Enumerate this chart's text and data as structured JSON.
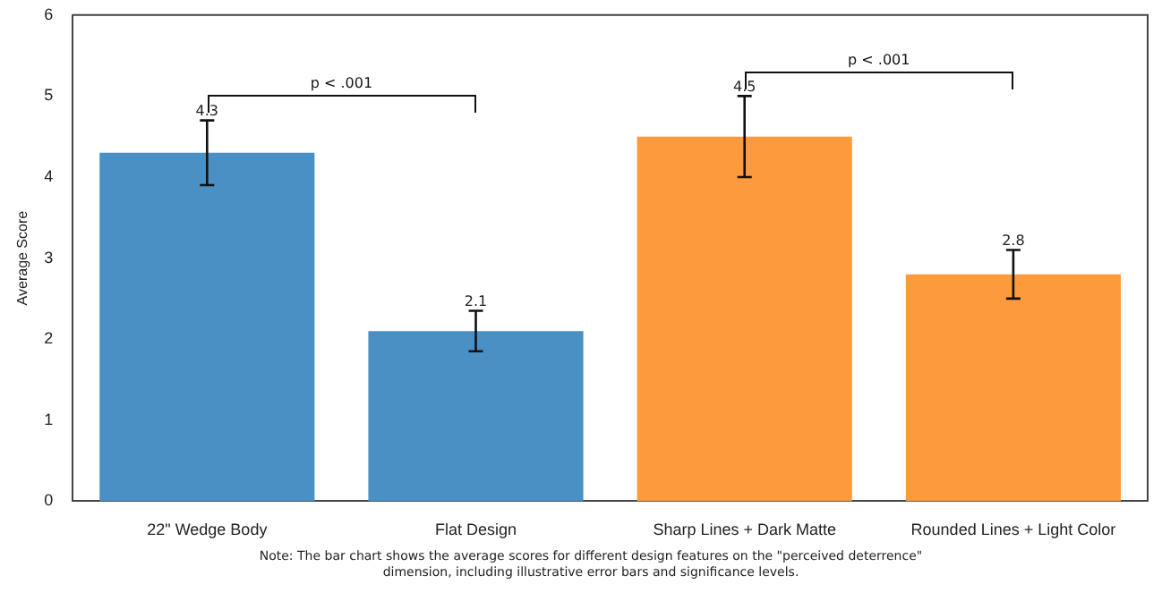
{
  "chart_data": {
    "type": "bar",
    "ylabel": "Average Score",
    "categories": [
      "22\" Wedge Body",
      "Flat Design",
      "Sharp Lines + Dark Matte",
      "Rounded Lines + Light Color"
    ],
    "values": [
      4.3,
      2.1,
      4.5,
      2.8
    ],
    "colors": [
      "#4a90c4",
      "#4a90c4",
      "#fd9a3e",
      "#fd9a3e"
    ],
    "errors": [
      0.4,
      0.25,
      0.5,
      0.3
    ],
    "data_labels": true,
    "ylim": [
      0,
      6
    ],
    "yticks": [
      0,
      1,
      2,
      3,
      4,
      5,
      6
    ],
    "grid": false,
    "legend": false,
    "annotations": [
      "p < .001",
      "p < .001",
      "Note: The bar chart shows the average scores for different design features on the \"perceived deterrence\" dimension, including illustrative error bars and significance levels."
    ]
  }
}
